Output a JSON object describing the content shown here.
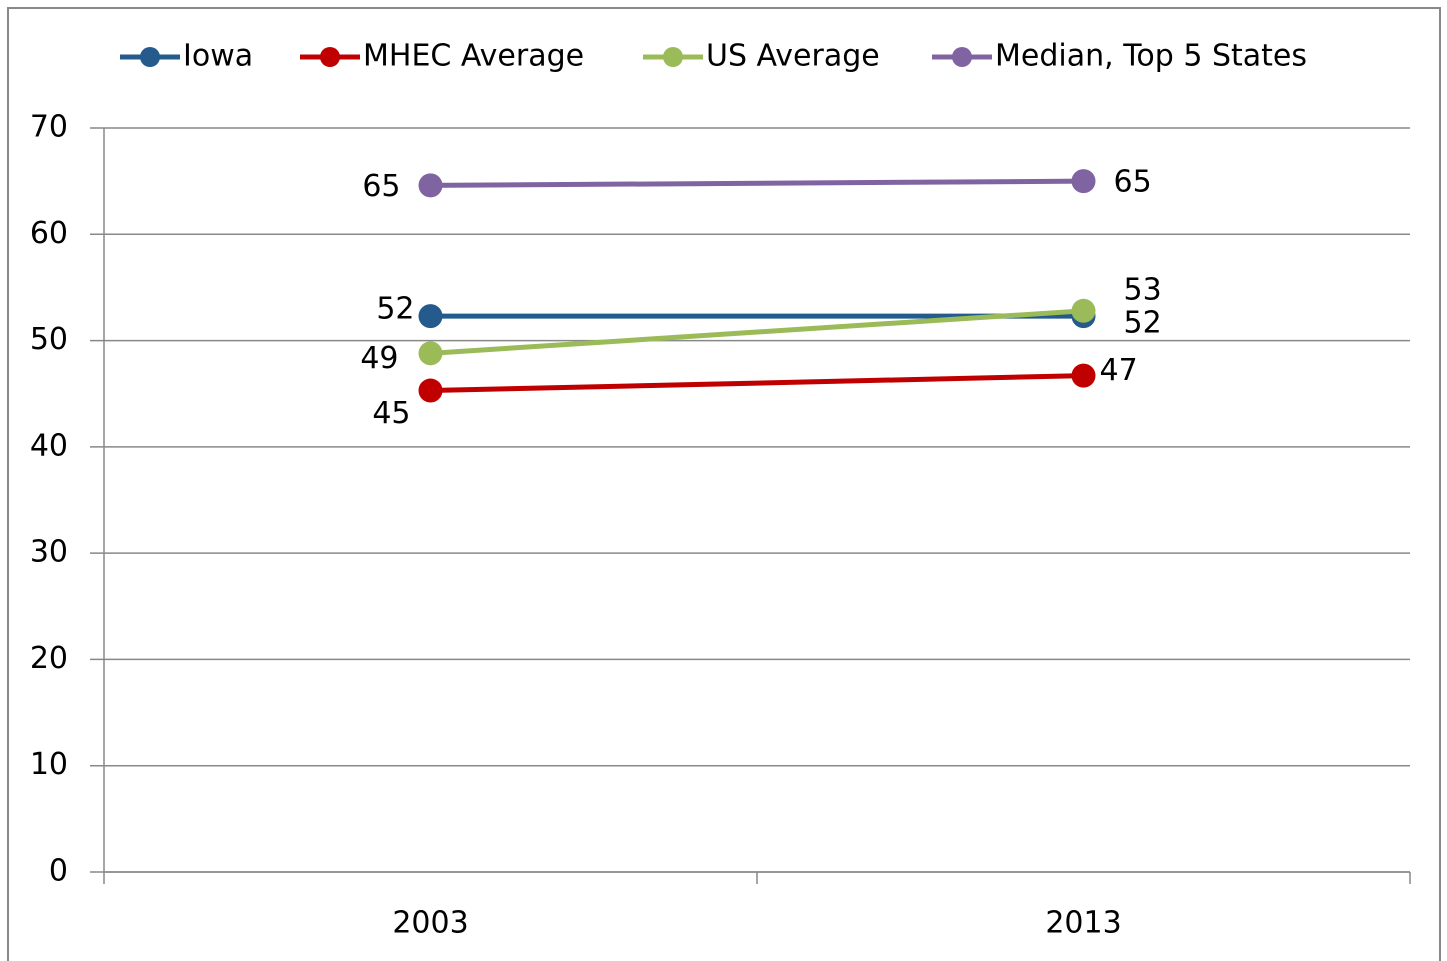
{
  "chart_data": {
    "type": "line",
    "categories": [
      "2003",
      "2013"
    ],
    "series": [
      {
        "name": "Iowa",
        "color": "#255a8c",
        "values": [
          52.3,
          52.3
        ],
        "value_labels": [
          "52",
          "52"
        ]
      },
      {
        "name": "MHEC Average",
        "color": "#c00000",
        "values": [
          45.3,
          46.7
        ],
        "value_labels": [
          "45",
          "47"
        ]
      },
      {
        "name": "US Average",
        "color": "#9bbb59",
        "values": [
          48.8,
          52.8
        ],
        "value_labels": [
          "49",
          "53"
        ]
      },
      {
        "name": "Median, Top 5 States",
        "color": "#8064a2",
        "values": [
          64.6,
          65.0
        ],
        "value_labels": [
          "65",
          "65"
        ]
      }
    ],
    "ylim": [
      0,
      70
    ],
    "yticks": [
      0,
      10,
      20,
      30,
      40,
      50,
      60,
      70
    ],
    "grid": true,
    "legend": "top"
  }
}
